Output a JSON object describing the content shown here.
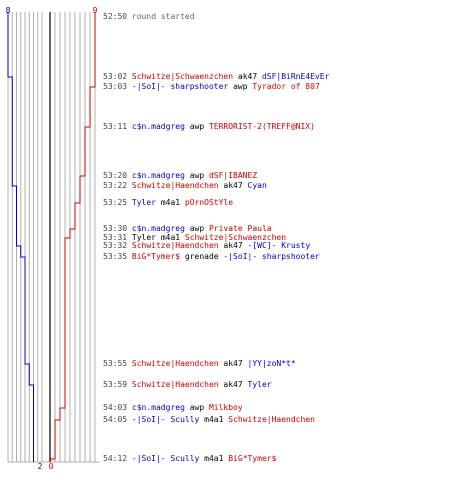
{
  "colors": {
    "blue": "#0000cc",
    "red": "#cc0000",
    "neutral": "#000000",
    "grid": "#b0b0b0",
    "axis": "#666666"
  },
  "scale": {
    "left_start": "8",
    "right_start": "9",
    "left_end": "2",
    "right_end": "0"
  },
  "start_event": {
    "time": "52:50",
    "text": "round started"
  },
  "events": [
    {
      "time": "53:02",
      "killer": "Schwitze|Schwaenzchen",
      "killer_team": "red",
      "weapon": "ak47",
      "victim": "dSF|BiRnE4EvEr",
      "victim_team": "blue",
      "blue": 7,
      "red": 9
    },
    {
      "time": "53:03",
      "killer": "-|SoI|- sharpshooter",
      "killer_team": "blue",
      "weapon": "awp",
      "victim": "Tyrador of 807",
      "victim_team": "red",
      "blue": 7,
      "red": 8
    },
    {
      "time": "53:11",
      "killer": "c$n.madgreg",
      "killer_team": "blue",
      "weapon": "awp",
      "victim": "TERRORIST-2(TREFF@NIX)",
      "victim_team": "red",
      "blue": 7,
      "red": 7
    },
    {
      "time": "53:20",
      "killer": "c$n.madgreg",
      "killer_team": "blue",
      "weapon": "awp",
      "victim": "dSF|IBANEZ",
      "victim_team": "red",
      "blue": 7,
      "red": 6
    },
    {
      "time": "53:22",
      "killer": "Schwitze|Haendchen",
      "killer_team": "red",
      "weapon": "ak47",
      "victim": "Cyan",
      "victim_team": "blue",
      "blue": 6,
      "red": 6
    },
    {
      "time": "53:25",
      "killer": "Tyler",
      "killer_team": "blue",
      "weapon": "m4a1",
      "victim": "pOrnOStYle",
      "victim_team": "red",
      "blue": 6,
      "red": 5
    },
    {
      "time": "53:30",
      "killer": "c$n.madgreg",
      "killer_team": "blue",
      "weapon": "awp",
      "victim": "Private Paula",
      "victim_team": "red",
      "blue": 6,
      "red": 4
    },
    {
      "time": "53:31",
      "killer": "Tyler",
      "killer_team": "neutral",
      "weapon": "m4a1",
      "victim": "Schwitze|Schwaenzchen",
      "victim_team": "red",
      "blue": 6,
      "red": 3
    },
    {
      "time": "53:32",
      "killer": "Schwitze|Haendchen",
      "killer_team": "red",
      "weapon": "ak47",
      "victim": "-[WC]- Krusty",
      "victim_team": "blue",
      "blue": 5,
      "red": 3
    },
    {
      "time": "53:35",
      "killer": "BiG*Tymer$",
      "killer_team": "red",
      "weapon": "grenade",
      "victim": "-|SoI|- sharpshooter",
      "victim_team": "blue",
      "blue": 4,
      "red": 3
    },
    {
      "time": "53:55",
      "killer": "Schwitze|Haendchen",
      "killer_team": "red",
      "weapon": "ak47",
      "victim": "|YY|zoN*t*",
      "victim_team": "blue",
      "blue": 3,
      "red": 3
    },
    {
      "time": "53:59",
      "killer": "Schwitze|Haendchen",
      "killer_team": "red",
      "weapon": "ak47",
      "victim": "Tyler",
      "victim_team": "blue",
      "blue": 2,
      "red": 3
    },
    {
      "time": "54:03",
      "killer": "c$n.madgreg",
      "killer_team": "blue",
      "weapon": "awp",
      "victim": "Milkboy",
      "victim_team": "red",
      "blue": 2,
      "red": 2
    },
    {
      "time": "54:05",
      "killer": "-|SoI|- Scully",
      "killer_team": "blue",
      "weapon": "m4a1",
      "victim": "Schwitze|Haendchen",
      "victim_team": "red",
      "blue": 2,
      "red": 1
    },
    {
      "time": "54:12",
      "killer": "-|SoI|- Scully",
      "killer_team": "blue",
      "weapon": "m4a1",
      "victim": "BiG*Tymer$",
      "victim_team": "red",
      "blue": 2,
      "red": 0
    }
  ]
}
